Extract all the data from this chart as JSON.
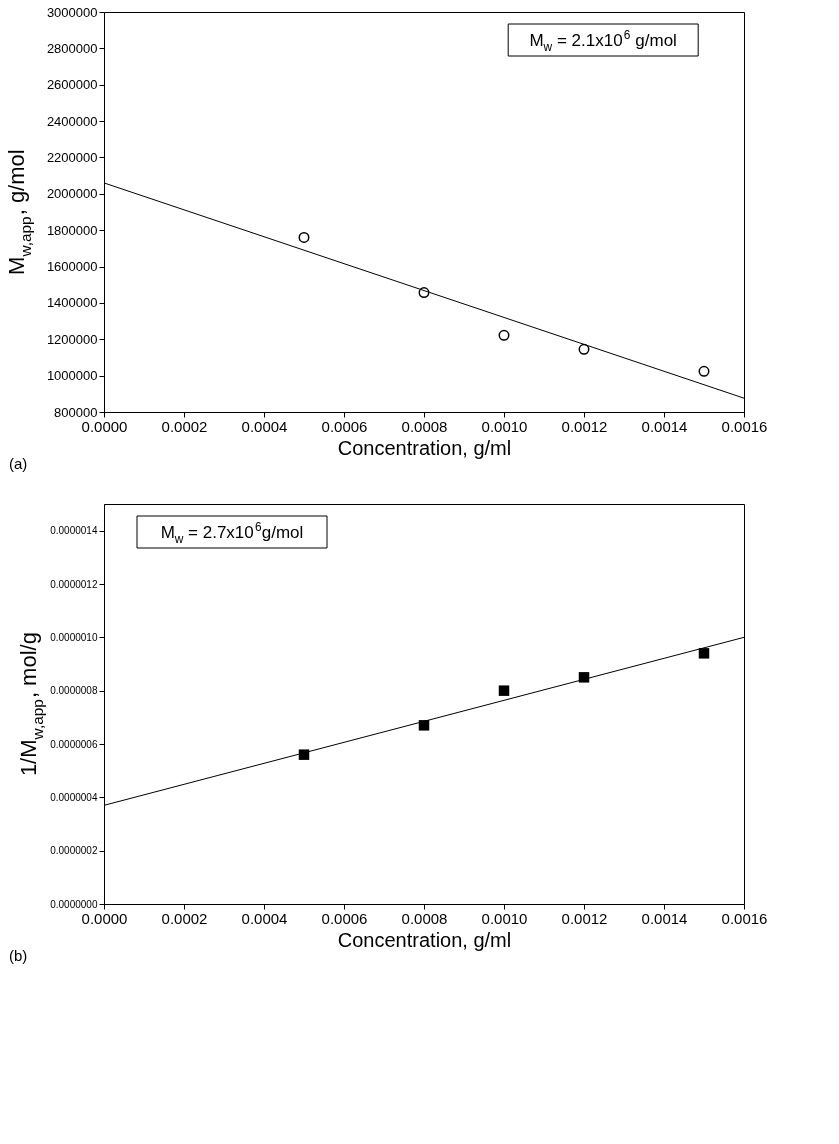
{
  "chart_data": [
    {
      "type": "scatter",
      "xlabel": "Concentration, g/ml",
      "ylabel": "M$_{w,app}$, g/mol",
      "xlim": [
        0,
        0.0016
      ],
      "xticks": [
        {
          "value": 0,
          "label": "0.0000"
        },
        {
          "value": 0.0002,
          "label": "0.0002"
        },
        {
          "value": 0.0004,
          "label": "0.0004"
        },
        {
          "value": 0.0006,
          "label": "0.0006"
        },
        {
          "value": 0.0008,
          "label": "0.0008"
        },
        {
          "value": 0.001,
          "label": "0.0010"
        },
        {
          "value": 0.0012,
          "label": "0.0012"
        },
        {
          "value": 0.0014,
          "label": "0.0014"
        },
        {
          "value": 0.0016,
          "label": "0.0016"
        }
      ],
      "ylim": [
        800000,
        3000000
      ],
      "yticks": [
        800000,
        1000000,
        1200000,
        1400000,
        1600000,
        1800000,
        2000000,
        2200000,
        2400000,
        2600000,
        2800000,
        3000000
      ],
      "series": [
        {
          "type": "scatter",
          "marker": "circle",
          "color": "#000000",
          "x": [
            0.0005,
            0.0008,
            0.001,
            0.0012,
            0.0015
          ],
          "values": [
            1760000,
            1457000,
            1222000,
            1145000,
            1024000
          ]
        },
        {
          "type": "line",
          "color": "#000000",
          "x": [
            0,
            0.0016
          ],
          "values": [
            2060000,
            876000
          ]
        }
      ],
      "annotations": [
        "M$_{w}$ = 2.1x10$^{6}$ g/mol",
        "(a)"
      ]
    },
    {
      "type": "scatter",
      "xlabel": "Concentration, g/ml",
      "ylabel": "1/M$_{w,app}$, mol/g",
      "xlim": [
        0,
        0.0016
      ],
      "xticks": [
        {
          "value": 0,
          "label": "0.0000"
        },
        {
          "value": 0.0002,
          "label": "0.0002"
        },
        {
          "value": 0.0004,
          "label": "0.0004"
        },
        {
          "value": 0.0006,
          "label": "0.0006"
        },
        {
          "value": 0.0008,
          "label": "0.0008"
        },
        {
          "value": 0.001,
          "label": "0.0010"
        },
        {
          "value": 0.0012,
          "label": "0.0012"
        },
        {
          "value": 0.0014,
          "label": "0.0014"
        },
        {
          "value": 0.0016,
          "label": "0.0016"
        }
      ],
      "ylim": [
        0,
        1.5e-06
      ],
      "yticks": [
        {
          "value": 0,
          "label": "0.0000000"
        },
        {
          "value": 2e-07,
          "label": "0.0000002"
        },
        {
          "value": 4e-07,
          "label": "0.0000004"
        },
        {
          "value": 6e-07,
          "label": "0.0000006"
        },
        {
          "value": 8e-07,
          "label": "0.0000008"
        },
        {
          "value": 1e-06,
          "label": "0.0000010"
        },
        {
          "value": 1.2e-06,
          "label": "0.0000012"
        },
        {
          "value": 1.4e-06,
          "label": "0.0000014"
        }
      ],
      "series": [
        {
          "type": "scatter",
          "marker": "square",
          "color": "#000000",
          "x": [
            0.0005,
            0.0008,
            0.001,
            0.0012,
            0.0015
          ],
          "values": [
            5.6e-07,
            6.7e-07,
            8e-07,
            8.5e-07,
            9.4e-07
          ]
        },
        {
          "type": "line",
          "color": "#000000",
          "x": [
            0,
            0.0016
          ],
          "values": [
            3.7e-07,
            1e-06
          ]
        }
      ],
      "annotations": [
        "M$_{w}$ = 2.7x10$^{6}$g/mol",
        "(b)"
      ]
    }
  ]
}
